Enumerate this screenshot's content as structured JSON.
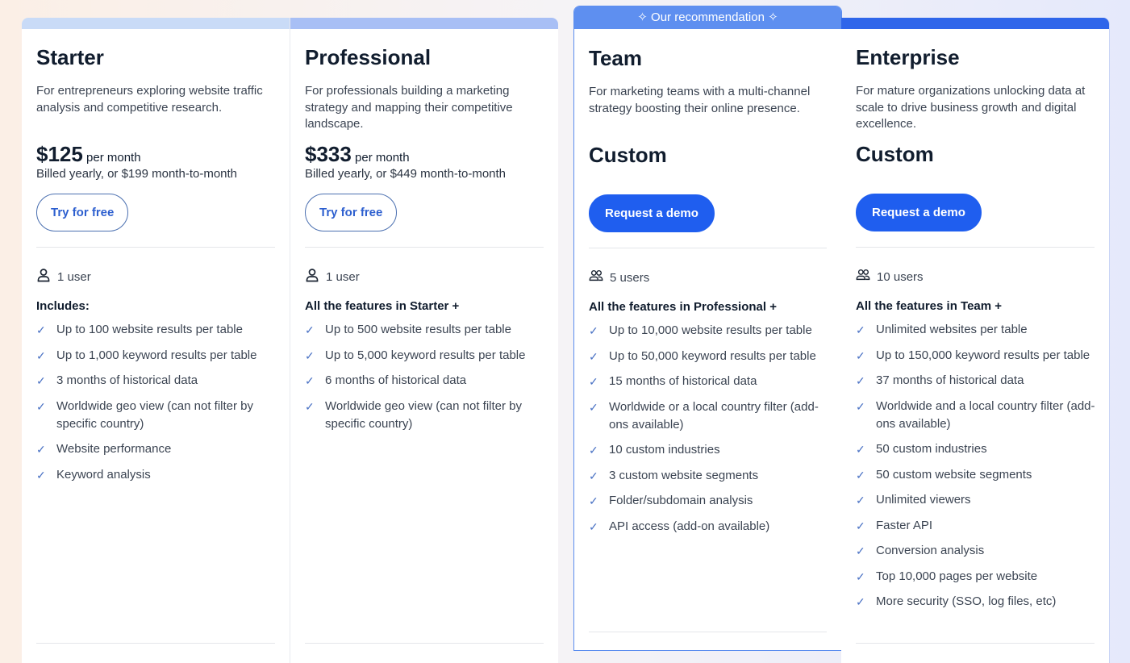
{
  "banner": "Our recommendation",
  "plans": [
    {
      "name": "Starter",
      "description": "For entrepreneurs exploring website traffic analysis and competitive research.",
      "price": "$125",
      "per": "per month",
      "billed": "Billed yearly, or $199 month-to-month",
      "button": "Try for free",
      "users": "1 user",
      "includes": "Includes:",
      "features": [
        "Up to 100 website results per table",
        "Up to 1,000 keyword results per table",
        "3 months of historical data",
        "Worldwide geo view (can not filter by specific country)",
        "Website performance",
        "Keyword analysis"
      ]
    },
    {
      "name": "Professional",
      "description": "For professionals building a marketing strategy and mapping their competitive landscape.",
      "price": "$333",
      "per": "per month",
      "billed": "Billed yearly, or $449 month-to-month",
      "button": "Try for free",
      "users": "1 user",
      "includes": "All the features in Starter +",
      "features": [
        "Up to 500 website results per table",
        "Up to 5,000 keyword results per table",
        "6 months of historical data",
        "Worldwide geo view (can not filter by specific country)"
      ]
    },
    {
      "name": "Team",
      "description": "For marketing teams with a multi-channel strategy boosting their online presence.",
      "price": "Custom",
      "button": "Request a demo",
      "users": "5 users",
      "includes": "All the features in Professional +",
      "features": [
        "Up to 10,000 website results per table",
        "Up to 50,000 keyword results per table",
        "15 months of historical data",
        "Worldwide or a local country filter (add-ons available)",
        "10 custom industries",
        "3 custom website segments",
        "Folder/subdomain analysis",
        "API access (add-on available)"
      ]
    },
    {
      "name": "Enterprise",
      "description": "For mature organizations unlocking data at scale to drive business growth and digital excellence.",
      "price": "Custom",
      "button": "Request a demo",
      "users": "10 users",
      "includes": "All the features in Team +",
      "features": [
        "Unlimited websites per table",
        "Up to 150,000 keyword results per table",
        "37 months of historical data",
        "Worldwide and a local country filter (add-ons available)",
        "50 custom industries",
        "50 custom website segments",
        "Unlimited viewers",
        "Faster API",
        "Conversion analysis",
        "Top 10,000 pages per website",
        "More security (SSO, log files, etc)"
      ]
    }
  ],
  "colors": {
    "accent": "#1f5eef",
    "recommend": "#5e8ff0"
  }
}
